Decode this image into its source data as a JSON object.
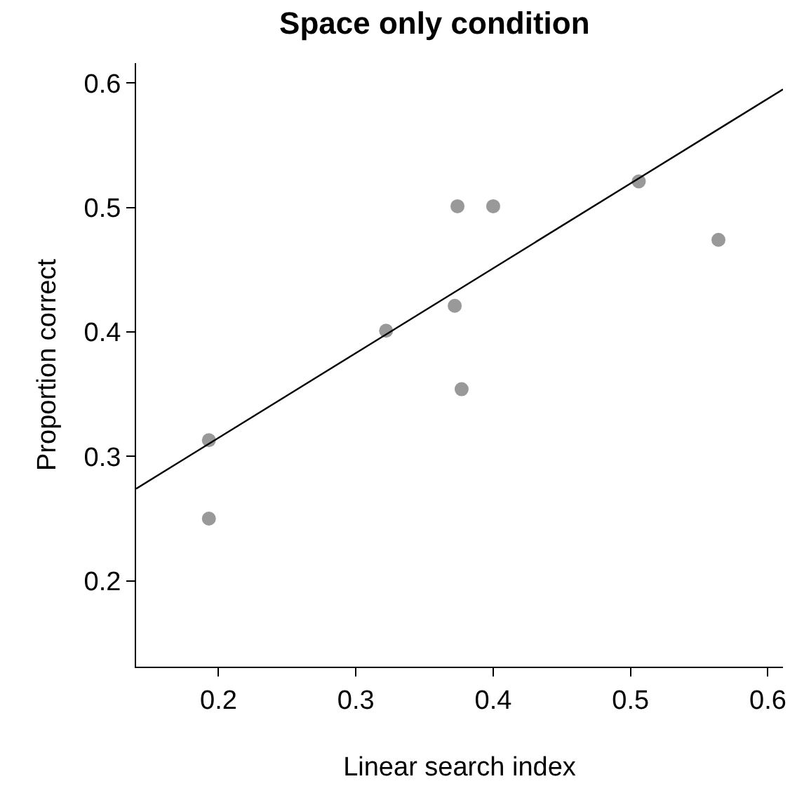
{
  "chart_data": {
    "type": "scatter",
    "title": "Space only condition",
    "xlabel": "Linear search index",
    "ylabel": "Proportion correct",
    "xlim": [
      0.14,
      0.611
    ],
    "xticks": [
      0.2,
      0.3,
      0.4,
      0.5,
      0.6
    ],
    "ylim": [
      0.131,
      0.616
    ],
    "yticks": [
      0.2,
      0.3,
      0.4,
      0.5,
      0.6
    ],
    "grid": false,
    "legend": false,
    "marker": "circle",
    "series": [
      {
        "type": "scatter",
        "color": "#999999",
        "x": [
          0.193,
          0.193,
          0.322,
          0.374,
          0.372,
          0.377,
          0.4,
          0.506,
          0.564
        ],
        "values": [
          0.313,
          0.25,
          0.401,
          0.501,
          0.421,
          0.354,
          0.501,
          0.521,
          0.474
        ]
      },
      {
        "type": "line",
        "color": "#000000",
        "marker": "none",
        "line_style": "solid",
        "x": [
          0.14,
          0.611
        ],
        "values": [
          0.274,
          0.595
        ]
      }
    ]
  }
}
